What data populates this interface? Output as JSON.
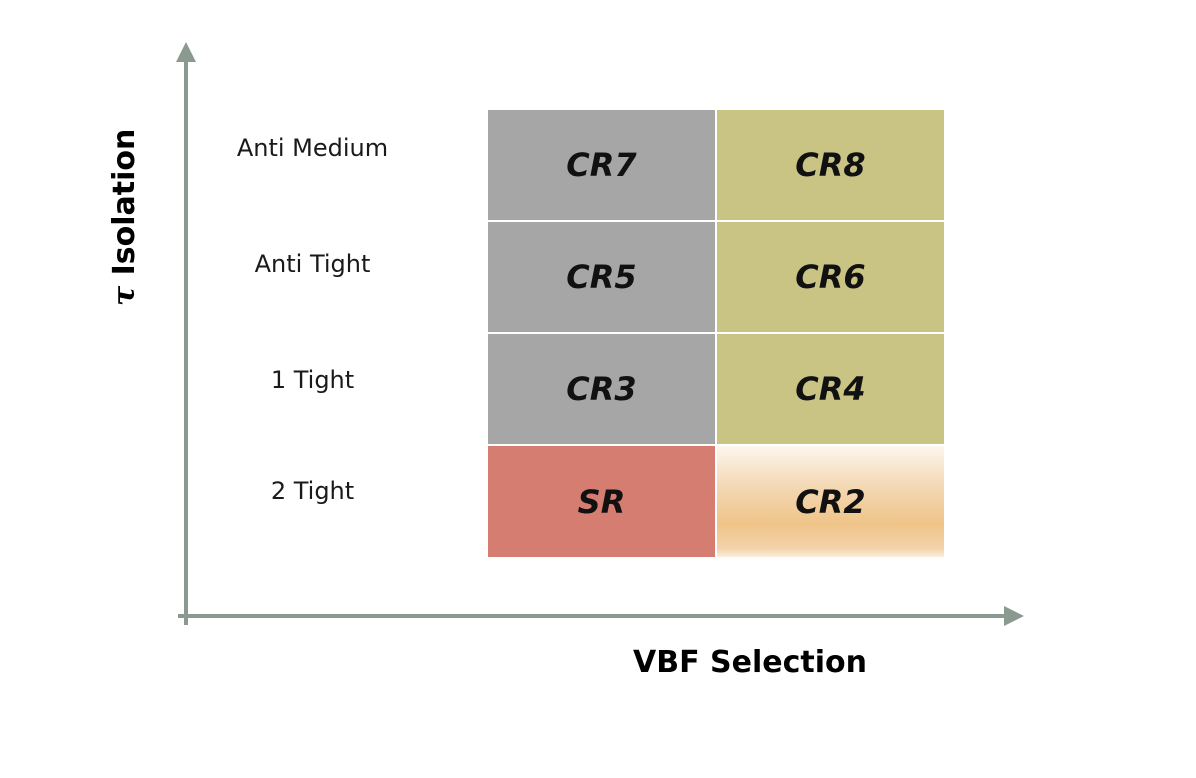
{
  "axes": {
    "y_title_symbol": "τ",
    "y_title_text": " Isolation",
    "x_title": "VBF Selection",
    "color": "#8a9a91"
  },
  "rows": [
    {
      "label": "Anti Medium"
    },
    {
      "label": "Anti Tight"
    },
    {
      "label": "1 Tight"
    },
    {
      "label": "2 Tight"
    }
  ],
  "cells": [
    {
      "label": "CR7",
      "color": "#a6a6a6"
    },
    {
      "label": "CR8",
      "color": "#c9c384"
    },
    {
      "label": "CR5",
      "color": "#a6a6a6"
    },
    {
      "label": "CR6",
      "color": "#c9c384"
    },
    {
      "label": "CR3",
      "color": "#a6a6a6"
    },
    {
      "label": "CR4",
      "color": "#c9c384"
    },
    {
      "label": "SR",
      "color": "#d67d72"
    },
    {
      "label": "CR2",
      "color": "#efc489"
    }
  ]
}
